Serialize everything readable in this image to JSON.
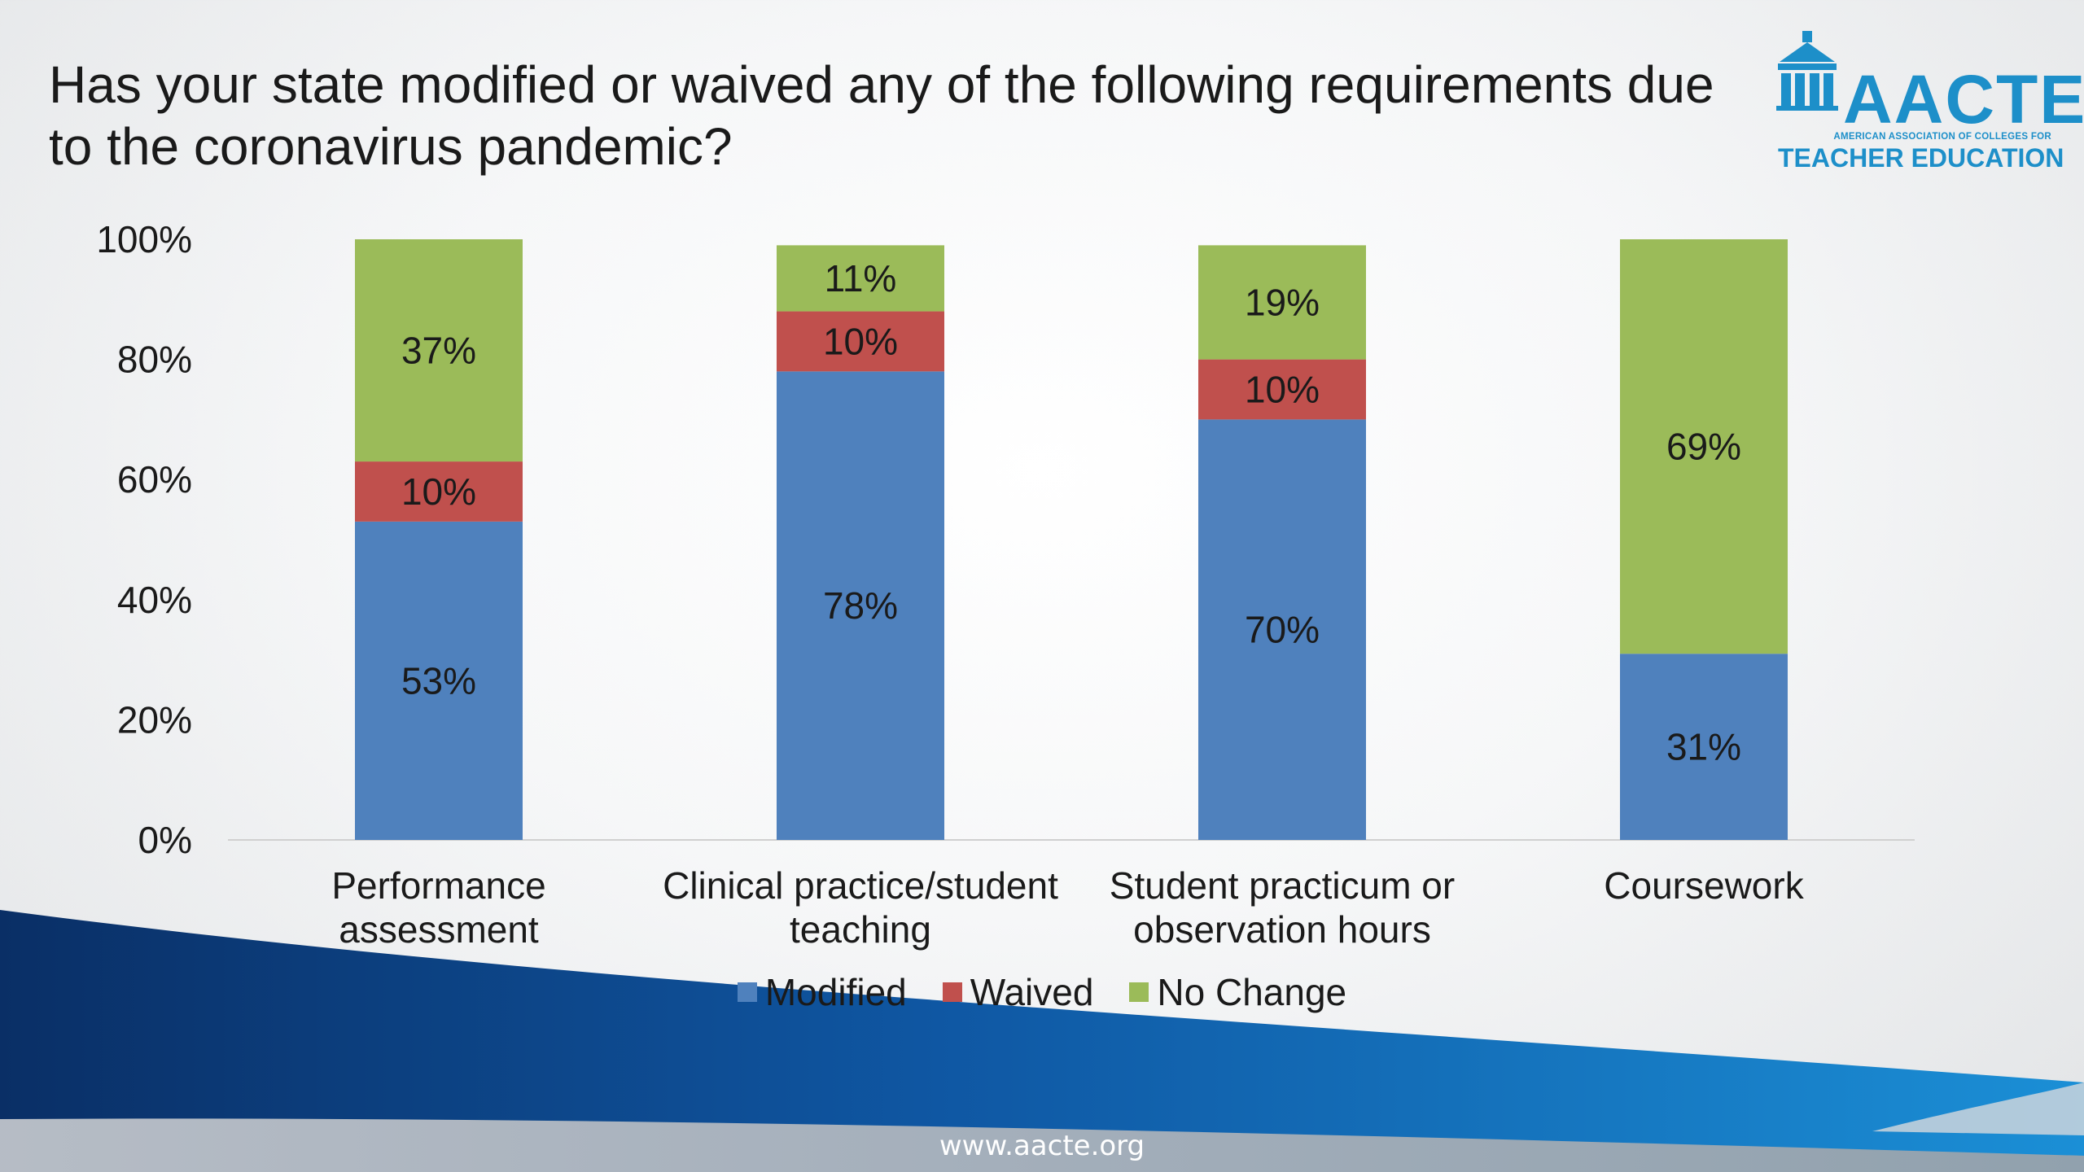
{
  "slide": {
    "title": "Has your state modified or waived any of the following requirements due to the coronavirus pandemic?",
    "footer": "www.aacte.org",
    "logo": {
      "word": "AACTE",
      "subtitle": "AMERICAN ASSOCIATION OF COLLEGES FOR",
      "subtitle2": "TEACHER EDUCATION",
      "color": "#1d8fc9"
    }
  },
  "chart_data": {
    "type": "bar",
    "stacked": true,
    "categories": [
      [
        "Performance",
        "assessment"
      ],
      [
        "Clinical practice/student",
        "teaching"
      ],
      [
        "Student practicum or",
        "observation hours"
      ],
      [
        "Coursework"
      ]
    ],
    "series": [
      {
        "name": "Modified",
        "color": "#4f81bd",
        "values": [
          53,
          78,
          70,
          31
        ],
        "labels": [
          "53%",
          "78%",
          "70%",
          "31%"
        ]
      },
      {
        "name": "Waived",
        "color": "#c0504d",
        "values": [
          10,
          10,
          10,
          0
        ],
        "labels": [
          "10%",
          "10%",
          "10%",
          ""
        ]
      },
      {
        "name": "No Change",
        "color": "#9bbb59",
        "values": [
          37,
          11,
          19,
          69
        ],
        "labels": [
          "37%",
          "11%",
          "19%",
          "69%"
        ]
      }
    ],
    "yticks": [
      "0%",
      "20%",
      "40%",
      "60%",
      "80%",
      "100%"
    ],
    "ylim": [
      0,
      100
    ],
    "grid": false,
    "legend": "bottom"
  }
}
